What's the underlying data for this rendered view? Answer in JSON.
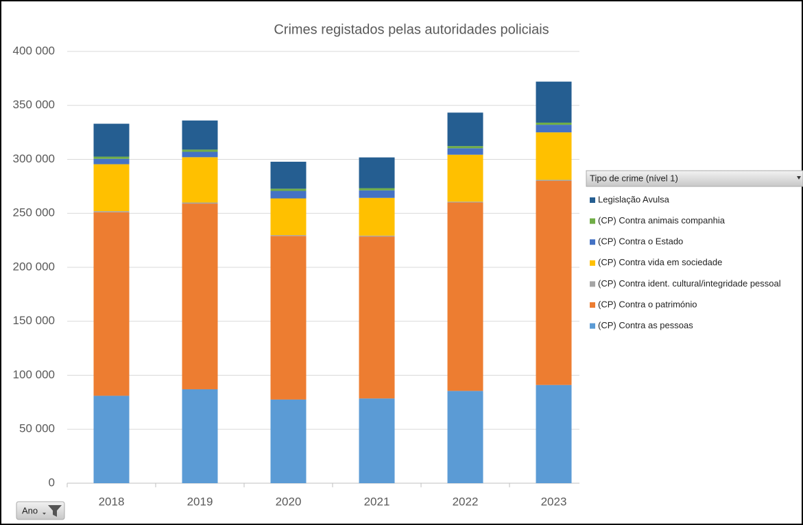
{
  "chart_data": {
    "type": "bar",
    "stacked": true,
    "title": "Crimes registados pelas autoridades policiais",
    "legend_title": "Tipo de crime (nível 1)",
    "axis_field": "Ano",
    "categories": [
      "2018",
      "2019",
      "2020",
      "2021",
      "2022",
      "2023"
    ],
    "series": [
      {
        "name": "(CP) Contra as pessoas",
        "color": "#5b9bd5",
        "values": [
          81000,
          87000,
          77500,
          78500,
          85500,
          91000
        ]
      },
      {
        "name": "(CP) Contra o património",
        "color": "#ed7d31",
        "values": [
          170000,
          172000,
          151500,
          150000,
          174500,
          189000
        ]
      },
      {
        "name": "(CP) Contra ident. cultural/integridade pessoal",
        "color": "#a5a5a5",
        "values": [
          1000,
          1000,
          800,
          800,
          800,
          1000
        ]
      },
      {
        "name": "(CP) Contra vida em sociedade",
        "color": "#ffc000",
        "values": [
          43500,
          42000,
          34000,
          35000,
          43500,
          44000
        ]
      },
      {
        "name": "(CP) Contra o Estado",
        "color": "#4472c4",
        "values": [
          5000,
          5000,
          7000,
          7000,
          6000,
          7000
        ]
      },
      {
        "name": "(CP) Contra animais companhia",
        "color": "#70ad47",
        "values": [
          2000,
          2000,
          2000,
          2000,
          2000,
          2000
        ]
      },
      {
        "name": "Legislação Avulsa",
        "color": "#255e91",
        "values": [
          30500,
          27000,
          25000,
          28500,
          31000,
          38000
        ]
      }
    ],
    "ylim": [
      0,
      400000
    ],
    "yticks": [
      0,
      {
        "value": 50000,
        "label": "50 000"
      },
      {
        "value": 100000,
        "label": "100 000"
      },
      {
        "value": 150000,
        "label": "150 000"
      },
      {
        "value": 200000,
        "label": "200 000"
      },
      {
        "value": 250000,
        "label": "250 000"
      },
      {
        "value": 300000,
        "label": "300 000"
      },
      {
        "value": 350000,
        "label": "350 000"
      },
      {
        "value": 400000,
        "label": "400 000"
      }
    ],
    "grid": true,
    "legend": "right"
  }
}
